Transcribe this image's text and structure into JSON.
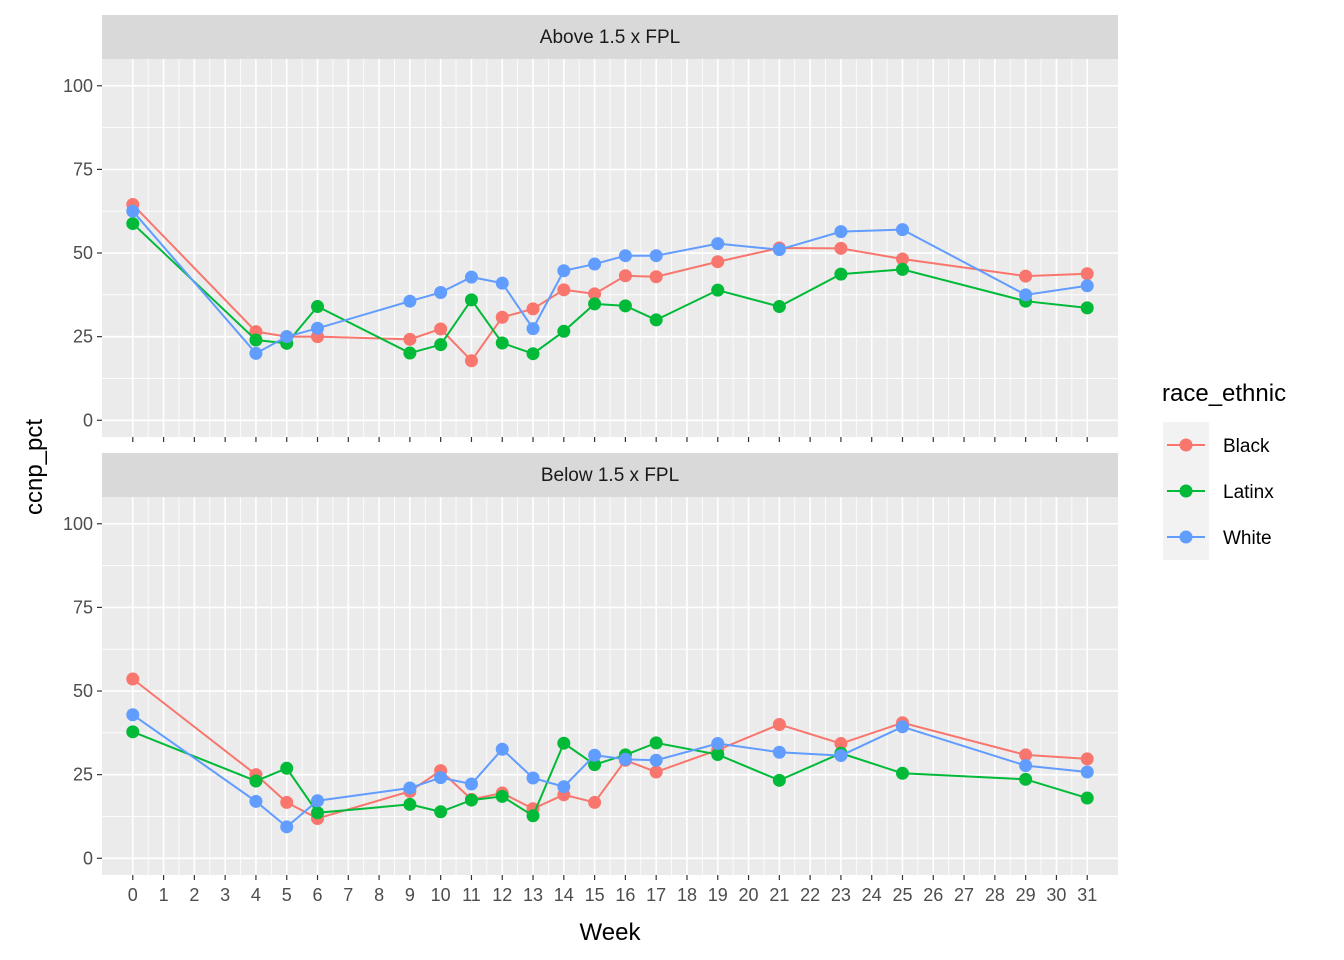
{
  "chart_data": {
    "type": "line",
    "title": "",
    "xlabel": "Week",
    "ylabel": "ccnp_pct",
    "x_ticks": [
      0,
      1,
      2,
      3,
      4,
      5,
      6,
      7,
      8,
      9,
      10,
      11,
      12,
      13,
      14,
      15,
      16,
      17,
      18,
      19,
      20,
      21,
      22,
      23,
      24,
      25,
      26,
      27,
      28,
      29,
      30,
      31
    ],
    "y_ticks": [
      0,
      25,
      50,
      75,
      100
    ],
    "xlim": [
      -1,
      32
    ],
    "ylim": [
      -5,
      108
    ],
    "grid": true,
    "legend": {
      "title": "race_ethnic",
      "placement": "right",
      "entries": [
        "Black",
        "Latinx",
        "White"
      ]
    },
    "colors": {
      "Black": "#F8766D",
      "Latinx": "#00BA38",
      "White": "#619CFF"
    },
    "panels": [
      {
        "label": "Above 1.5 x FPL",
        "series": [
          {
            "name": "Black",
            "x": [
              0,
              4,
              5,
              6,
              9,
              10,
              11,
              12,
              13,
              14,
              15,
              16,
              17,
              19,
              21,
              23,
              25,
              29,
              31
            ],
            "values": [
              64.5,
              26.5,
              25,
              25,
              24.2,
              27.3,
              17.8,
              30.8,
              33.3,
              39,
              37.8,
              43.2,
              42.9,
              47.4,
              51.5,
              51.4,
              48.2,
              43.1,
              43.8
            ]
          },
          {
            "name": "Latinx",
            "x": [
              0,
              4,
              5,
              6,
              9,
              10,
              11,
              12,
              13,
              14,
              15,
              16,
              17,
              19,
              21,
              23,
              25,
              29,
              31
            ],
            "values": [
              58.8,
              24,
              23,
              34,
              20.1,
              22.6,
              36,
              23.1,
              19.9,
              26.6,
              34.8,
              34.2,
              30,
              38.9,
              34,
              43.7,
              45.1,
              35.6,
              33.6
            ]
          },
          {
            "name": "White",
            "x": [
              0,
              4,
              5,
              6,
              9,
              10,
              11,
              12,
              13,
              14,
              15,
              16,
              17,
              19,
              21,
              23,
              25,
              29,
              31
            ],
            "values": [
              62.5,
              20,
              25,
              27.5,
              35.6,
              38.2,
              42.8,
              41,
              27.4,
              44.7,
              46.7,
              49.2,
              49.2,
              52.8,
              51,
              56.4,
              57,
              37.5,
              40.2
            ]
          }
        ]
      },
      {
        "label": "Below 1.5 x FPL",
        "series": [
          {
            "name": "Black",
            "x": [
              0,
              4,
              5,
              6,
              9,
              10,
              11,
              12,
              13,
              14,
              15,
              16,
              17,
              19,
              21,
              23,
              25,
              29,
              31
            ],
            "values": [
              53.6,
              25,
              16.7,
              11.9,
              20,
              26.2,
              17.6,
              19.5,
              14.8,
              19,
              16.7,
              29.3,
              25.8,
              32.4,
              40,
              34.3,
              40.5,
              30.9,
              29.7
            ]
          },
          {
            "name": "Latinx",
            "x": [
              0,
              4,
              5,
              6,
              9,
              10,
              11,
              12,
              13,
              14,
              15,
              16,
              17,
              19,
              21,
              23,
              25,
              29,
              31
            ],
            "values": [
              37.8,
              23.1,
              26.9,
              13.6,
              16.1,
              13.9,
              17.4,
              18.5,
              12.7,
              34.4,
              28,
              30.9,
              34.5,
              31,
              23.3,
              31.4,
              25.4,
              23.6,
              18
            ]
          },
          {
            "name": "White",
            "x": [
              0,
              4,
              5,
              6,
              9,
              10,
              11,
              12,
              13,
              14,
              15,
              16,
              17,
              19,
              21,
              23,
              25,
              29,
              31
            ],
            "values": [
              42.9,
              17,
              9.4,
              17.2,
              21,
              24.1,
              22.2,
              32.6,
              24,
              21.4,
              30.8,
              29.6,
              29.3,
              34.3,
              31.7,
              30.7,
              39.3,
              27.7,
              25.8
            ]
          }
        ]
      }
    ]
  }
}
